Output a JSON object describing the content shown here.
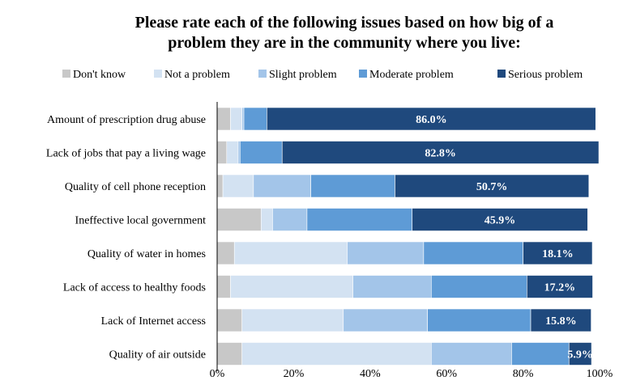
{
  "chart_data": {
    "type": "bar",
    "orientation": "horizontal",
    "stacked": true,
    "title_lines": [
      "Please rate each of the following issues based on how big of a",
      "problem they are in the community where you live:"
    ],
    "categories": [
      "Amount of prescription drug abuse",
      "Lack of jobs that pay a living wage",
      "Quality of cell phone reception",
      "Ineffective local government",
      "Quality of water in homes",
      "Lack of access to healthy foods",
      "Lack of Internet access",
      "Quality of air outside"
    ],
    "series": [
      {
        "name": "Don't know",
        "color": "#c8c8c8",
        "values": [
          3.5,
          2.5,
          1.5,
          11.5,
          4.5,
          3.5,
          6.5,
          6.5
        ]
      },
      {
        "name": "Not a problem",
        "color": "#d3e2f2",
        "values": [
          3.0,
          3.0,
          8.0,
          3.0,
          29.5,
          32.0,
          26.5,
          49.5
        ]
      },
      {
        "name": "Slight problem",
        "color": "#a3c5e9",
        "values": [
          0.5,
          0.5,
          15.0,
          9.0,
          20.0,
          20.5,
          22.0,
          21.0
        ]
      },
      {
        "name": "Moderate problem",
        "color": "#5e9bd6",
        "values": [
          6.0,
          11.0,
          22.0,
          27.5,
          26.0,
          25.0,
          27.0,
          15.0
        ]
      },
      {
        "name": "Serious problem",
        "color": "#1f497d",
        "values": [
          86.0,
          82.8,
          50.7,
          45.9,
          18.1,
          17.2,
          15.8,
          5.9
        ]
      }
    ],
    "data_labels": [
      "86.0%",
      "82.8%",
      "50.7%",
      "45.9%",
      "18.1%",
      "17.2%",
      "15.8%",
      "5.9%"
    ],
    "xlim": [
      0,
      100
    ],
    "x_ticks": [
      "0%",
      "20%",
      "40%",
      "60%",
      "80%",
      "100%"
    ],
    "legend_position": "top",
    "grid": false
  }
}
